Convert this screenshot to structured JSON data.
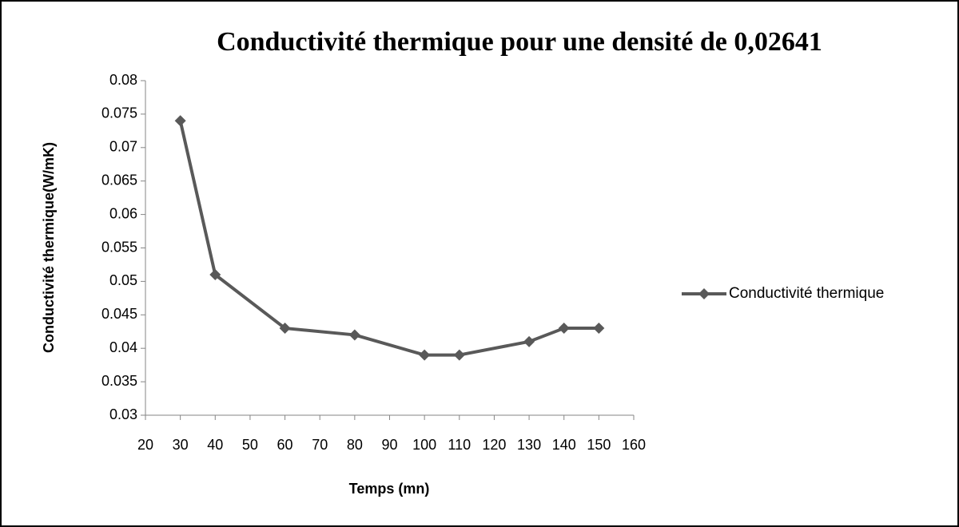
{
  "chart_data": {
    "type": "line",
    "title": "Conductivité thermique pour une densité de 0,02641",
    "x_label": "Temps (mn)",
    "y_label": "Conductivité thermique(W/mK)",
    "x": [
      30,
      40,
      60,
      80,
      100,
      110,
      130,
      140,
      150
    ],
    "series": [
      {
        "name": "Conductivité thermique",
        "color": "#595959",
        "values": [
          0.074,
          0.051,
          0.043,
          0.042,
          0.039,
          0.039,
          0.041,
          0.043,
          0.043
        ]
      }
    ],
    "xlim": [
      20,
      160
    ],
    "xticks": [
      20,
      30,
      40,
      50,
      60,
      70,
      80,
      90,
      100,
      110,
      120,
      130,
      140,
      150,
      160
    ],
    "ylim": [
      0.03,
      0.08
    ],
    "yticks": [
      0.03,
      0.035,
      0.04,
      0.045,
      0.05,
      0.055,
      0.06,
      0.065,
      0.07,
      0.075,
      0.08
    ],
    "grid": false,
    "legend": "right"
  }
}
